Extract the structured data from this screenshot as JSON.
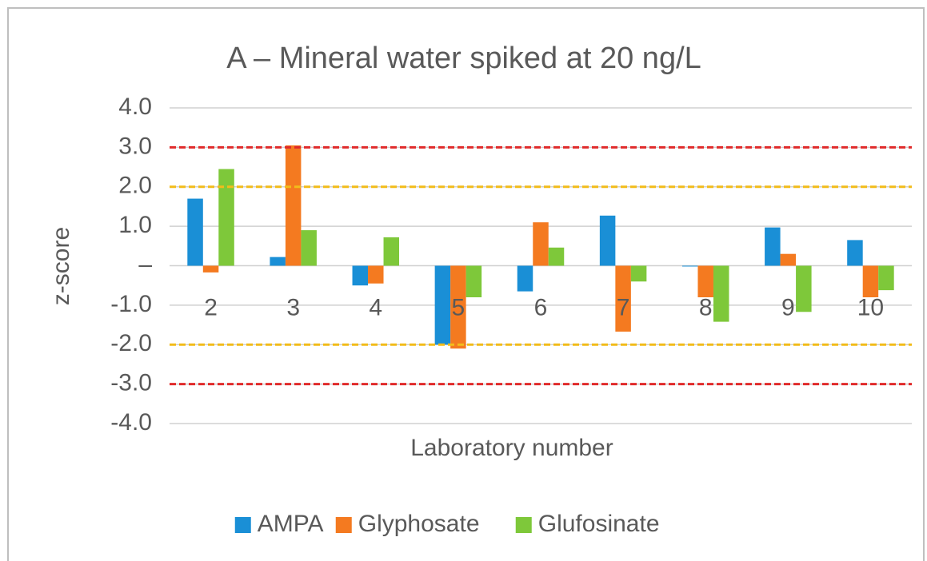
{
  "chart_data": {
    "type": "bar",
    "title": "A – Mineral water spiked at 20 ng/L",
    "x_label": "Laboratory number",
    "y_label": "z-score",
    "categories": [
      "2",
      "3",
      "4",
      "5",
      "6",
      "7",
      "8",
      "9",
      "10"
    ],
    "series": [
      {
        "name": "AMPA",
        "color": "#1a8fd6",
        "values": [
          1.7,
          0.22,
          -0.5,
          -2.0,
          -0.65,
          1.27,
          -0.02,
          0.97,
          0.65
        ]
      },
      {
        "name": "Glyphosate",
        "color": "#f47a20",
        "values": [
          -0.17,
          3.05,
          -0.45,
          -2.1,
          1.1,
          -1.67,
          -0.8,
          0.3,
          -0.8
        ]
      },
      {
        "name": "Glufosinate",
        "color": "#7ec83a",
        "values": [
          2.45,
          0.9,
          0.72,
          -0.8,
          0.46,
          -0.4,
          -1.42,
          -1.17,
          -0.62
        ]
      }
    ],
    "ylim": [
      -4,
      4
    ],
    "yticks": [
      {
        "value": -4,
        "label": "-4.0"
      },
      {
        "value": -3,
        "label": "-3.0"
      },
      {
        "value": -2,
        "label": "-2.0"
      },
      {
        "value": -1,
        "label": "-1.0"
      },
      {
        "value": 0,
        "label": "–"
      },
      {
        "value": 1,
        "label": "1.0"
      },
      {
        "value": 2,
        "label": "2.0"
      },
      {
        "value": 3,
        "label": "3.0"
      },
      {
        "value": 4,
        "label": "4.0"
      }
    ],
    "grid": true,
    "reference_lines": [
      {
        "value": 3,
        "color": "#e02a2a"
      },
      {
        "value": -3,
        "color": "#e02a2a"
      },
      {
        "value": 2,
        "color": "#f2bc1a"
      },
      {
        "value": -2,
        "color": "#f2bc1a"
      }
    ],
    "legend": "bottom"
  }
}
